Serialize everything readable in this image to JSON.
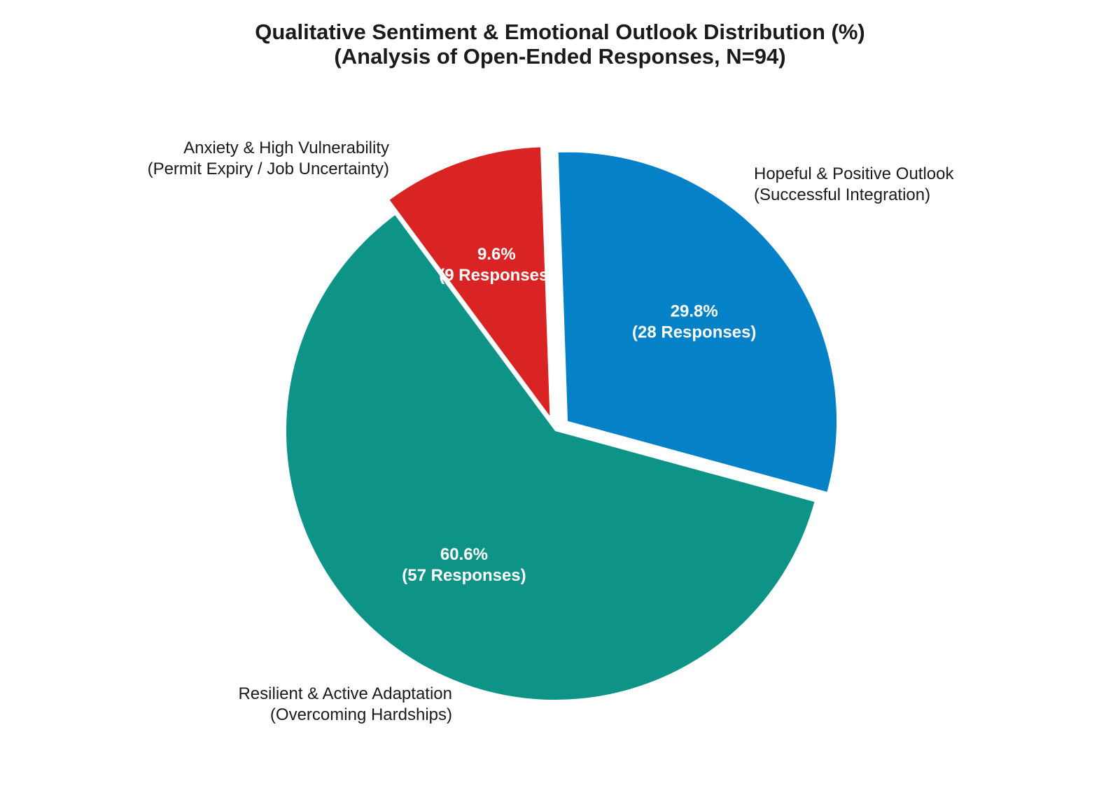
{
  "chart_data": {
    "type": "pie",
    "title_line1": "Qualitative Sentiment & Emotional Outlook Distribution (%)",
    "title_line2": "(Analysis of Open-Ended Responses, N=94)",
    "slices": [
      {
        "label_line1": "Hopeful & Positive Outlook",
        "label_line2": "(Successful Integration)",
        "value": 29.8,
        "count": 28,
        "pct_text": "29.8%",
        "count_text": "(28 Responses)",
        "color": "#0581c8",
        "exploded": true
      },
      {
        "label_line1": "Resilient & Active Adaptation",
        "label_line2": "(Overcoming Hardships)",
        "value": 60.6,
        "count": 57,
        "pct_text": "60.6%",
        "count_text": "(57 Responses)",
        "color": "#0e9487",
        "exploded": false
      },
      {
        "label_line1": "Anxiety & High Vulnerability",
        "label_line2": "(Permit Expiry / Job Uncertainty)",
        "value": 9.6,
        "count": 9,
        "pct_text": "9.6%",
        "count_text": "(9 Responses)",
        "color": "#da2424",
        "exploded": true
      }
    ],
    "start_angle_deg": 92,
    "direction": "clockwise"
  }
}
